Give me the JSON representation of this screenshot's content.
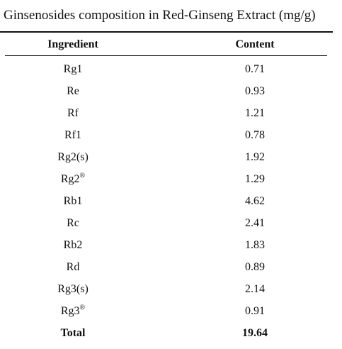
{
  "caption": "Ginsenosides composition in Red-Ginseng Extract (mg/g)",
  "headers": {
    "ingredient": "Ingredient",
    "content": "Content"
  },
  "rows": [
    {
      "ingredient": "Rg1",
      "sup": "",
      "content": "0.71"
    },
    {
      "ingredient": "Re",
      "sup": "",
      "content": "0.93"
    },
    {
      "ingredient": "Rf",
      "sup": "",
      "content": "1.21"
    },
    {
      "ingredient": "Rf1",
      "sup": "",
      "content": "0.78"
    },
    {
      "ingredient": "Rg2(s)",
      "sup": "",
      "content": "1.92"
    },
    {
      "ingredient": "Rg2",
      "sup": "®",
      "content": "1.29"
    },
    {
      "ingredient": "Rb1",
      "sup": "",
      "content": "4.62"
    },
    {
      "ingredient": "Rc",
      "sup": "",
      "content": "2.41"
    },
    {
      "ingredient": "Rb2",
      "sup": "",
      "content": "1.83"
    },
    {
      "ingredient": "Rd",
      "sup": "",
      "content": "0.89"
    },
    {
      "ingredient": "Rg3(s)",
      "sup": "",
      "content": "2.14"
    },
    {
      "ingredient": "Rg3",
      "sup": "®",
      "content": "0.91"
    }
  ],
  "total": {
    "label": "Total",
    "content": "19.64"
  }
}
